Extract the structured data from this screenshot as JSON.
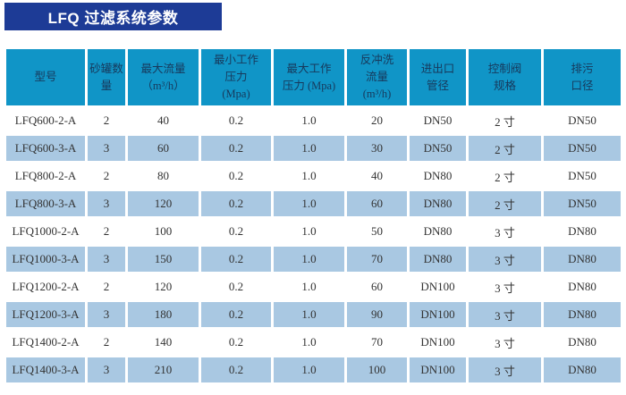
{
  "title": "LFQ 过滤系统参数",
  "colors": {
    "title_bg": "#1d3b96",
    "title_text": "#ffffff",
    "header_bg": "#1095c7",
    "header_text": "#17395c",
    "row_alt_bg": "#a9c8e2",
    "cell_text": "#333333"
  },
  "table": {
    "headers": [
      {
        "id": "model",
        "label": "型号"
      },
      {
        "id": "tank-count",
        "label": "砂罐数\n量"
      },
      {
        "id": "max-flow",
        "label": "最大流量\n（m³/h）"
      },
      {
        "id": "min-working-pressure",
        "label": "最小工作\n压力\n(Mpa)"
      },
      {
        "id": "max-working-pressure",
        "label": "最大工作\n压力 (Mpa)"
      },
      {
        "id": "backwash-flow",
        "label": "反冲洗\n流量\n(m³/h)"
      },
      {
        "id": "inlet-outlet-diameter",
        "label": "进出口\n管径"
      },
      {
        "id": "control-valve-spec",
        "label": "控制阀\n规格"
      },
      {
        "id": "drain-diameter",
        "label": "排污\n口径"
      }
    ],
    "rows": [
      [
        "LFQ600-2-A",
        "2",
        "40",
        "0.2",
        "1.0",
        "20",
        "DN50",
        "2 寸",
        "DN50"
      ],
      [
        "LFQ600-3-A",
        "3",
        "60",
        "0.2",
        "1.0",
        "30",
        "DN50",
        "2 寸",
        "DN50"
      ],
      [
        "LFQ800-2-A",
        "2",
        "80",
        "0.2",
        "1.0",
        "40",
        "DN80",
        "2 寸",
        "DN50"
      ],
      [
        "LFQ800-3-A",
        "3",
        "120",
        "0.2",
        "1.0",
        "60",
        "DN80",
        "2 寸",
        "DN50"
      ],
      [
        "LFQ1000-2-A",
        "2",
        "100",
        "0.2",
        "1.0",
        "50",
        "DN80",
        "3 寸",
        "DN80"
      ],
      [
        "LFQ1000-3-A",
        "3",
        "150",
        "0.2",
        "1.0",
        "70",
        "DN80",
        "3 寸",
        "DN80"
      ],
      [
        "LFQ1200-2-A",
        "2",
        "120",
        "0.2",
        "1.0",
        "60",
        "DN100",
        "3 寸",
        "DN80"
      ],
      [
        "LFQ1200-3-A",
        "3",
        "180",
        "0.2",
        "1.0",
        "90",
        "DN100",
        "3 寸",
        "DN80"
      ],
      [
        "LFQ1400-2-A",
        "2",
        "140",
        "0.2",
        "1.0",
        "70",
        "DN100",
        "3 寸",
        "DN80"
      ],
      [
        "LFQ1400-3-A",
        "3",
        "210",
        "0.2",
        "1.0",
        "100",
        "DN100",
        "3 寸",
        "DN80"
      ]
    ]
  }
}
